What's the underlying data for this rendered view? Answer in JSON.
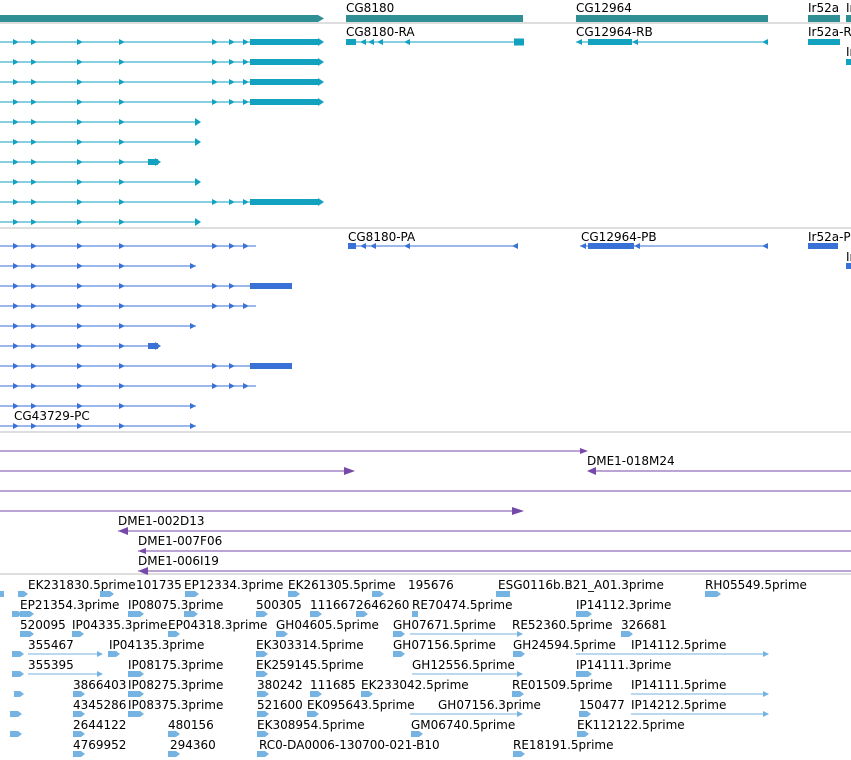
{
  "colors": {
    "gene": "#2f8f95",
    "transcript_rna": "#12a2c0",
    "transcript_protein": "#3a71d6",
    "clone": "#7549a8",
    "est": "#74b3e2",
    "separator": "#bdbdbd"
  },
  "tracks": {
    "genes": {
      "labels": [
        "CG8180",
        "CG12964",
        "Ir52a",
        "Ir"
      ]
    },
    "transcripts": {
      "labels": [
        "CG8180-RA",
        "CG12964-RB",
        "Ir52a-R",
        "Ir"
      ]
    },
    "proteins": {
      "labels": [
        "CG8180-PA",
        "CG12964-PB",
        "Ir52a-P",
        "Ir",
        "CG43729-PC"
      ]
    },
    "clones": {
      "labels": [
        "DME1-018M24",
        "DME1-002D13",
        "DME1-007F06",
        "DME1-006I19"
      ]
    },
    "ests": {
      "labels": [
        "EK231830.5prime",
        "101735",
        "EP12334.3prime",
        "EK261305.5prime",
        "195676",
        "ESG0116b.B21_A01.3prime",
        "RH05549.5prime",
        "EP21354.3prime",
        "IP08075.3prime",
        "500305",
        "111667",
        "2646260",
        "RE70474.5prime",
        "IP14112.3prime",
        "520095",
        "IP04335.3prime",
        "EP04318.3prime",
        "GH04605.5prime",
        "GH07671.5prime",
        "RE52360.5prime",
        "326681",
        "355467",
        "IP04135.3prime",
        "EK303314.5prime",
        "GH07156.5prime",
        "GH24594.5prime",
        "IP14112.5prime",
        "355395",
        "IP08175.3prime",
        "EK259145.5prime",
        "GH12556.5prime",
        "IP14111.3prime",
        "3866403",
        "IP08275.3prime",
        "380242",
        "111685",
        "EK233042.5prime",
        "RE01509.5prime",
        "IP14111.5prime",
        "4345286",
        "IP08375.3prime",
        "521600",
        "EK095643.5prime",
        "GH07156.3prime",
        "150477",
        "IP14212.5prime",
        "2644122",
        "480156",
        "EK308954.5prime",
        "GM06740.5prime",
        "EK112122.5prime",
        "4769952",
        "294360",
        "RC0-DA0006-130700-021-B10",
        "RE18191.5prime"
      ]
    }
  }
}
